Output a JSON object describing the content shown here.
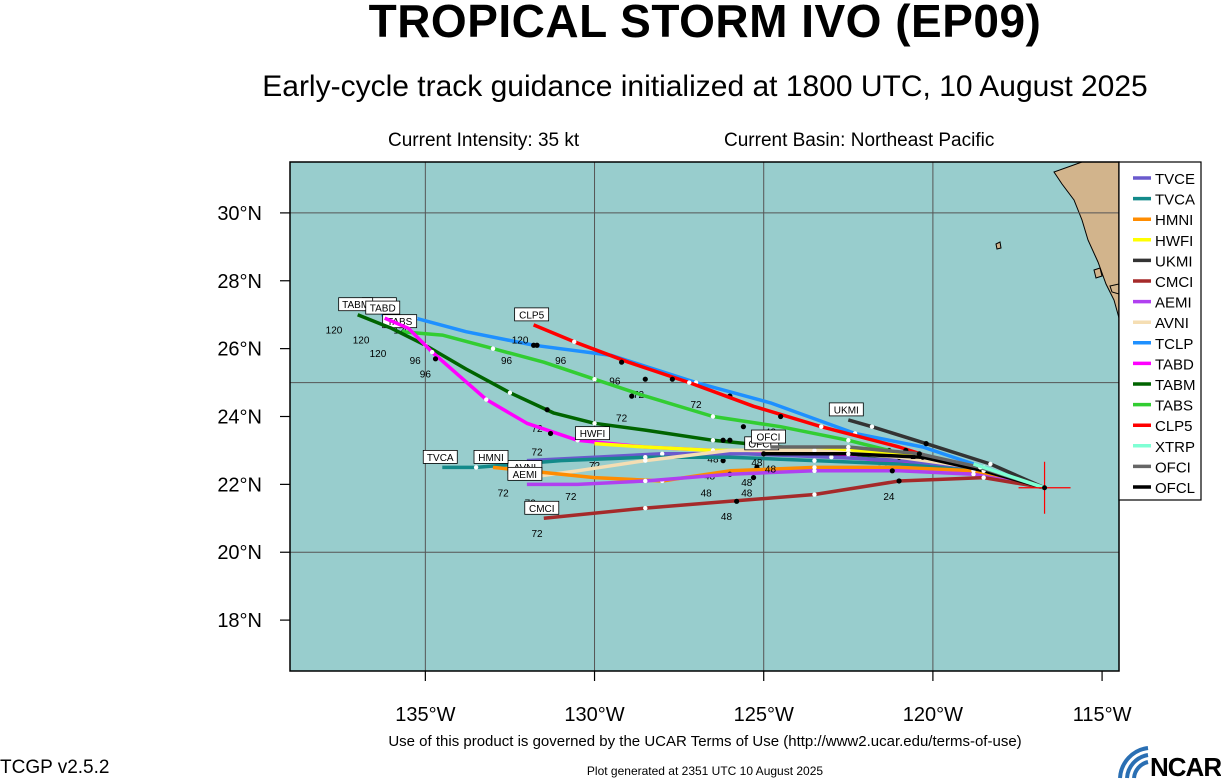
{
  "header": {
    "title": "TROPICAL STORM IVO (EP09)",
    "subtitle": "Early-cycle track guidance initialized at 1800 UTC, 10 August 2025",
    "intensity": "Current Intensity: 35 kt",
    "basin": "Current Basin: Northeast Pacific"
  },
  "footer": {
    "terms": "Use of this product is governed by the UCAR Terms of Use (http://www2.ucar.edu/terms-of-use)",
    "version": "TCGP v2.5.2",
    "generated": "Plot generated at 2351 UTC   10 August 2025",
    "logo": "NCAR"
  },
  "map": {
    "lon_range": [
      -139,
      -114.5
    ],
    "lat_range": [
      16.5,
      31.5
    ],
    "lon_ticks": [
      {
        "value": -135,
        "label": "135°W"
      },
      {
        "value": -130,
        "label": "130°W"
      },
      {
        "value": -125,
        "label": "125°W"
      },
      {
        "value": -120,
        "label": "120°W"
      },
      {
        "value": -115,
        "label": "115°W"
      }
    ],
    "lat_ticks": [
      {
        "value": 18,
        "label": "18°N"
      },
      {
        "value": 20,
        "label": "20°N"
      },
      {
        "value": 22,
        "label": "22°N"
      },
      {
        "value": 24,
        "label": "24°N"
      },
      {
        "value": 26,
        "label": "26°N"
      },
      {
        "value": 28,
        "label": "28°N"
      },
      {
        "value": 30,
        "label": "30°N"
      }
    ],
    "grid_lon": [
      -135,
      -130,
      -125,
      -120
    ],
    "grid_lat": [
      20,
      25,
      30
    ],
    "ocean_color": "#98cdcd",
    "land_color": "#d2b48c",
    "grid": true,
    "current_position": {
      "lon": -116.7,
      "lat": 21.9
    },
    "legend_placement": "right",
    "legend": [
      {
        "name": "TVCE",
        "color": "#6a5acd"
      },
      {
        "name": "TVCA",
        "color": "#138a8a"
      },
      {
        "name": "HMNI",
        "color": "#ff8c00"
      },
      {
        "name": "HWFI",
        "color": "#ffff00"
      },
      {
        "name": "UKMI",
        "color": "#333333"
      },
      {
        "name": "CMCI",
        "color": "#a52a2a"
      },
      {
        "name": "AEMI",
        "color": "#b040f0"
      },
      {
        "name": "AVNI",
        "color": "#f5deb3"
      },
      {
        "name": "TCLP",
        "color": "#1e90ff"
      },
      {
        "name": "TABD",
        "color": "#ff00ff"
      },
      {
        "name": "TABM",
        "color": "#006400"
      },
      {
        "name": "TABS",
        "color": "#32cd32"
      },
      {
        "name": "CLP5",
        "color": "#ff0000"
      },
      {
        "name": "XTRP",
        "color": "#7fffd4"
      },
      {
        "name": "OFCI",
        "color": "#666666"
      },
      {
        "name": "OFCL",
        "color": "#000000"
      }
    ],
    "tracks": [
      {
        "name": "TCLP",
        "color": "#1e90ff",
        "label": "TCLP",
        "label_hours": "120",
        "points": [
          [
            -116.7,
            21.9
          ],
          [
            -118.5,
            22.5
          ],
          [
            -120.3,
            23.1
          ],
          [
            -122.3,
            23.5
          ],
          [
            -124.8,
            24.4
          ],
          [
            -127,
            25
          ],
          [
            -129.5,
            25.8
          ],
          [
            -131.8,
            26.1
          ],
          [
            -133.8,
            26.5
          ],
          [
            -135.3,
            26.9
          ],
          [
            -136.3,
            27.0
          ]
        ],
        "dots": [
          [
            -121.3,
            23.0
          ],
          [
            -126.0,
            24.6
          ],
          [
            -128.5,
            25.1
          ],
          [
            -131.7,
            26.1
          ]
        ],
        "hours": [
          [
            -128.7,
            24.9,
            "72"
          ],
          [
            -131.0,
            25.9,
            "96"
          ],
          [
            -135.7,
            26.8,
            "120"
          ]
        ]
      },
      {
        "name": "CLP5",
        "color": "#ff0000",
        "label": "CLP5",
        "label_hours": "120",
        "points": [
          [
            -116.7,
            21.9
          ],
          [
            -118.8,
            22.4
          ],
          [
            -121.0,
            23.1
          ],
          [
            -123.3,
            23.7
          ],
          [
            -125.3,
            24.3
          ],
          [
            -127.2,
            25.0
          ],
          [
            -129.0,
            25.6
          ],
          [
            -130.6,
            26.2
          ],
          [
            -131.8,
            26.7
          ]
        ],
        "dots": [
          [
            -120.8,
            23.0
          ],
          [
            -124.5,
            24.0
          ],
          [
            -127.7,
            25.1
          ],
          [
            -129.2,
            25.6
          ]
        ],
        "hours": [
          [
            -124.8,
            23.8,
            "48"
          ],
          [
            -127,
            24.6,
            "72"
          ],
          [
            -129.4,
            25.3,
            "96"
          ],
          [
            -132.2,
            26.5,
            "120"
          ]
        ]
      },
      {
        "name": "TABS",
        "color": "#32cd32",
        "label": "TABS",
        "label_hours": "120",
        "points": [
          [
            -116.7,
            21.9
          ],
          [
            -118.6,
            22.4
          ],
          [
            -120.5,
            22.8
          ],
          [
            -122.5,
            23.3
          ],
          [
            -124.5,
            23.7
          ],
          [
            -126.5,
            24.0
          ],
          [
            -128.5,
            24.6
          ],
          [
            -130.0,
            25.1
          ],
          [
            -131.5,
            25.6
          ],
          [
            -133.0,
            26.0
          ],
          [
            -134.5,
            26.4
          ],
          [
            -135.7,
            26.5
          ]
        ],
        "dots": [
          [
            -125.6,
            23.7
          ],
          [
            -128.9,
            24.6
          ],
          [
            -131.8,
            26.1
          ]
        ],
        "hours": [
          [
            -125.3,
            23.4,
            "48"
          ],
          [
            -129.2,
            24.2,
            "72"
          ],
          [
            -132.6,
            25.9,
            "96"
          ],
          [
            -136.4,
            26.1,
            "120"
          ]
        ]
      },
      {
        "name": "TABM",
        "color": "#006400",
        "label": "TABM",
        "label_hours": "120",
        "points": [
          [
            -116.7,
            21.9
          ],
          [
            -118.6,
            22.3
          ],
          [
            -120.5,
            22.7
          ],
          [
            -122.5,
            22.9
          ],
          [
            -124.5,
            23.1
          ],
          [
            -126.5,
            23.3
          ],
          [
            -128.5,
            23.6
          ],
          [
            -130.0,
            23.8
          ],
          [
            -131.2,
            24.1
          ],
          [
            -132.5,
            24.7
          ],
          [
            -133.8,
            25.4
          ],
          [
            -135.0,
            26.1
          ],
          [
            -136.0,
            26.6
          ],
          [
            -137.0,
            27.0
          ]
        ],
        "dots": [
          [
            -120.4,
            22.8
          ],
          [
            -126.0,
            23.3
          ],
          [
            -131.4,
            24.2
          ]
        ],
        "hours": [
          [
            -126.5,
            23.0,
            "48"
          ],
          [
            -131.7,
            23.9,
            "72"
          ],
          [
            -135.3,
            25.9,
            "96"
          ],
          [
            -137.7,
            26.8,
            "120"
          ]
        ]
      },
      {
        "name": "TABD",
        "color": "#ff00ff",
        "label": "TABD",
        "label_hours": "120",
        "points": [
          [
            -116.7,
            21.9
          ],
          [
            -118.6,
            22.3
          ],
          [
            -120.5,
            22.6
          ],
          [
            -122.5,
            22.8
          ],
          [
            -124.5,
            22.9
          ],
          [
            -126.5,
            23.0
          ],
          [
            -128.5,
            23.1
          ],
          [
            -130.5,
            23.3
          ],
          [
            -132.0,
            23.8
          ],
          [
            -133.2,
            24.5
          ],
          [
            -134.0,
            25.2
          ],
          [
            -134.8,
            25.9
          ],
          [
            -135.5,
            26.6
          ],
          [
            -136.2,
            26.9
          ]
        ],
        "dots": [
          [
            -131.3,
            23.5
          ],
          [
            -134.7,
            25.7
          ]
        ],
        "hours": [
          [
            -131.7,
            23.2,
            "72"
          ],
          [
            -135.0,
            25.5,
            "96"
          ],
          [
            -136.9,
            26.5,
            "120"
          ]
        ]
      },
      {
        "name": "HWFI",
        "color": "#ffff00",
        "label": "HWFI",
        "label_hours": "72",
        "points": [
          [
            -116.7,
            21.9
          ],
          [
            -118.6,
            22.5
          ],
          [
            -120.5,
            22.9
          ],
          [
            -122.5,
            23.0
          ],
          [
            -124.5,
            23.0
          ],
          [
            -126.5,
            23.0
          ],
          [
            -128.5,
            23.1
          ],
          [
            -130.0,
            23.2
          ]
        ],
        "dots": [
          [
            -126.2,
            23.3
          ]
        ],
        "hours": [
          [
            -130,
            22.8,
            "72"
          ]
        ]
      },
      {
        "name": "TVCE",
        "color": "#6a5acd",
        "label": "",
        "label_hours": "",
        "points": [
          [
            -116.7,
            21.9
          ],
          [
            -118.7,
            22.4
          ],
          [
            -120.8,
            22.7
          ],
          [
            -123.0,
            22.8
          ],
          [
            -125.5,
            22.9
          ],
          [
            -128.0,
            22.9
          ],
          [
            -130.0,
            22.8
          ],
          [
            -132.0,
            22.7
          ]
        ],
        "dots": [
          [
            -121.0,
            22.8
          ],
          [
            -126.2,
            22.7
          ]
        ],
        "hours": [
          [
            -126.6,
            22.5,
            "48"
          ],
          [
            -121.5,
            22.7,
            "24"
          ]
        ]
      },
      {
        "name": "TVCA",
        "color": "#138a8a",
        "label": "TVCA",
        "label_hours": "",
        "points": [
          [
            -116.7,
            21.9
          ],
          [
            -118.8,
            22.4
          ],
          [
            -121.0,
            22.6
          ],
          [
            -123.5,
            22.7
          ],
          [
            -126.0,
            22.8
          ],
          [
            -128.5,
            22.8
          ],
          [
            -131.0,
            22.7
          ],
          [
            -133.5,
            22.5
          ],
          [
            -134.5,
            22.5
          ]
        ],
        "dots": [],
        "hours": []
      },
      {
        "name": "AVNI",
        "color": "#f5deb3",
        "label": "AVNI",
        "label_hours": "72",
        "points": [
          [
            -116.7,
            21.9
          ],
          [
            -118.8,
            22.5
          ],
          [
            -121.0,
            22.8
          ],
          [
            -123.5,
            23.0
          ],
          [
            -126.0,
            23.0
          ],
          [
            -128.5,
            22.7
          ],
          [
            -130.5,
            22.4
          ],
          [
            -132.0,
            22.2
          ]
        ],
        "dots": [
          [
            -125.2,
            22.5
          ]
        ],
        "hours": [
          [
            -125.5,
            22.3,
            "48"
          ],
          [
            -132.7,
            22.0,
            "72"
          ]
        ]
      },
      {
        "name": "HMNI",
        "color": "#ff8c00",
        "label": "HMNI",
        "label_hours": "72",
        "points": [
          [
            -116.7,
            21.9
          ],
          [
            -118.8,
            22.4
          ],
          [
            -121.0,
            22.5
          ],
          [
            -123.5,
            22.5
          ],
          [
            -126.0,
            22.4
          ],
          [
            -128.0,
            22.1
          ],
          [
            -130.0,
            22.2
          ],
          [
            -132.0,
            22.4
          ],
          [
            -133.0,
            22.5
          ]
        ],
        "dots": [
          [
            -126.0,
            22.3
          ]
        ],
        "hours": [
          [
            -126.7,
            22.0,
            "48"
          ],
          [
            -130.7,
            21.9,
            "72"
          ]
        ]
      },
      {
        "name": "AEMI",
        "color": "#b040f0",
        "label": "AEMI",
        "label_hours": "72",
        "points": [
          [
            -116.7,
            21.9
          ],
          [
            -118.8,
            22.3
          ],
          [
            -121.0,
            22.4
          ],
          [
            -123.5,
            22.4
          ],
          [
            -126.0,
            22.3
          ],
          [
            -128.5,
            22.1
          ],
          [
            -130.5,
            22.0
          ],
          [
            -132.0,
            22.0
          ]
        ],
        "dots": [
          [
            -121.2,
            22.4
          ],
          [
            -125.3,
            22.2
          ]
        ],
        "hours": [
          [
            -125.5,
            22.0,
            "48"
          ],
          [
            -131.9,
            21.7,
            "72"
          ]
        ]
      },
      {
        "name": "UKMI",
        "color": "#333333",
        "label": "UKMI",
        "label_hours": "",
        "points": [
          [
            -116.7,
            21.9
          ],
          [
            -118.3,
            22.6
          ],
          [
            -120.2,
            23.2
          ],
          [
            -121.8,
            23.7
          ],
          [
            -122.5,
            23.9
          ]
        ],
        "dots": [
          [
            -120.2,
            23.2
          ]
        ],
        "hours": [
          [
            -120.5,
            23.1,
            "24"
          ]
        ]
      },
      {
        "name": "CMCI",
        "color": "#a52a2a",
        "label": "CMCI",
        "label_hours": "72",
        "points": [
          [
            -116.7,
            21.9
          ],
          [
            -118.5,
            22.2
          ],
          [
            -121.0,
            22.1
          ],
          [
            -123.5,
            21.7
          ],
          [
            -126.0,
            21.5
          ],
          [
            -128.5,
            21.3
          ],
          [
            -131.5,
            21.0
          ]
        ],
        "dots": [
          [
            -121.0,
            22.1
          ],
          [
            -125.8,
            21.5
          ]
        ],
        "hours": [
          [
            -121.3,
            21.9,
            "24"
          ],
          [
            -126.1,
            21.3,
            "48"
          ],
          [
            -131.7,
            20.8,
            "72"
          ]
        ]
      },
      {
        "name": "OFCL",
        "color": "#000000",
        "label": "OFCL",
        "label_hours": "48",
        "points": [
          [
            -116.7,
            21.9
          ],
          [
            -118.5,
            22.4
          ],
          [
            -120.3,
            22.8
          ],
          [
            -122.5,
            22.9
          ],
          [
            -125.0,
            22.9
          ]
        ],
        "dots": [
          [
            -120.3,
            22.8
          ],
          [
            -125.0,
            22.9
          ]
        ],
        "hours": [
          [
            -124.8,
            22.7,
            "48"
          ]
        ]
      },
      {
        "name": "OFCI",
        "color": "#666666",
        "label": "OFCI",
        "label_hours": "48",
        "points": [
          [
            -116.7,
            21.9
          ],
          [
            -118.6,
            22.5
          ],
          [
            -120.4,
            22.9
          ],
          [
            -122.5,
            23.1
          ],
          [
            -124.8,
            23.1
          ]
        ],
        "dots": [
          [
            -120.4,
            22.9
          ]
        ],
        "hours": [
          [
            -125.2,
            22.9,
            "48"
          ]
        ]
      },
      {
        "name": "XTRP",
        "color": "#7fffd4",
        "label": "",
        "label_hours": "",
        "points": [
          [
            -116.7,
            21.9
          ],
          [
            -118.8,
            22.6
          ]
        ],
        "dots": [],
        "hours": []
      }
    ]
  }
}
